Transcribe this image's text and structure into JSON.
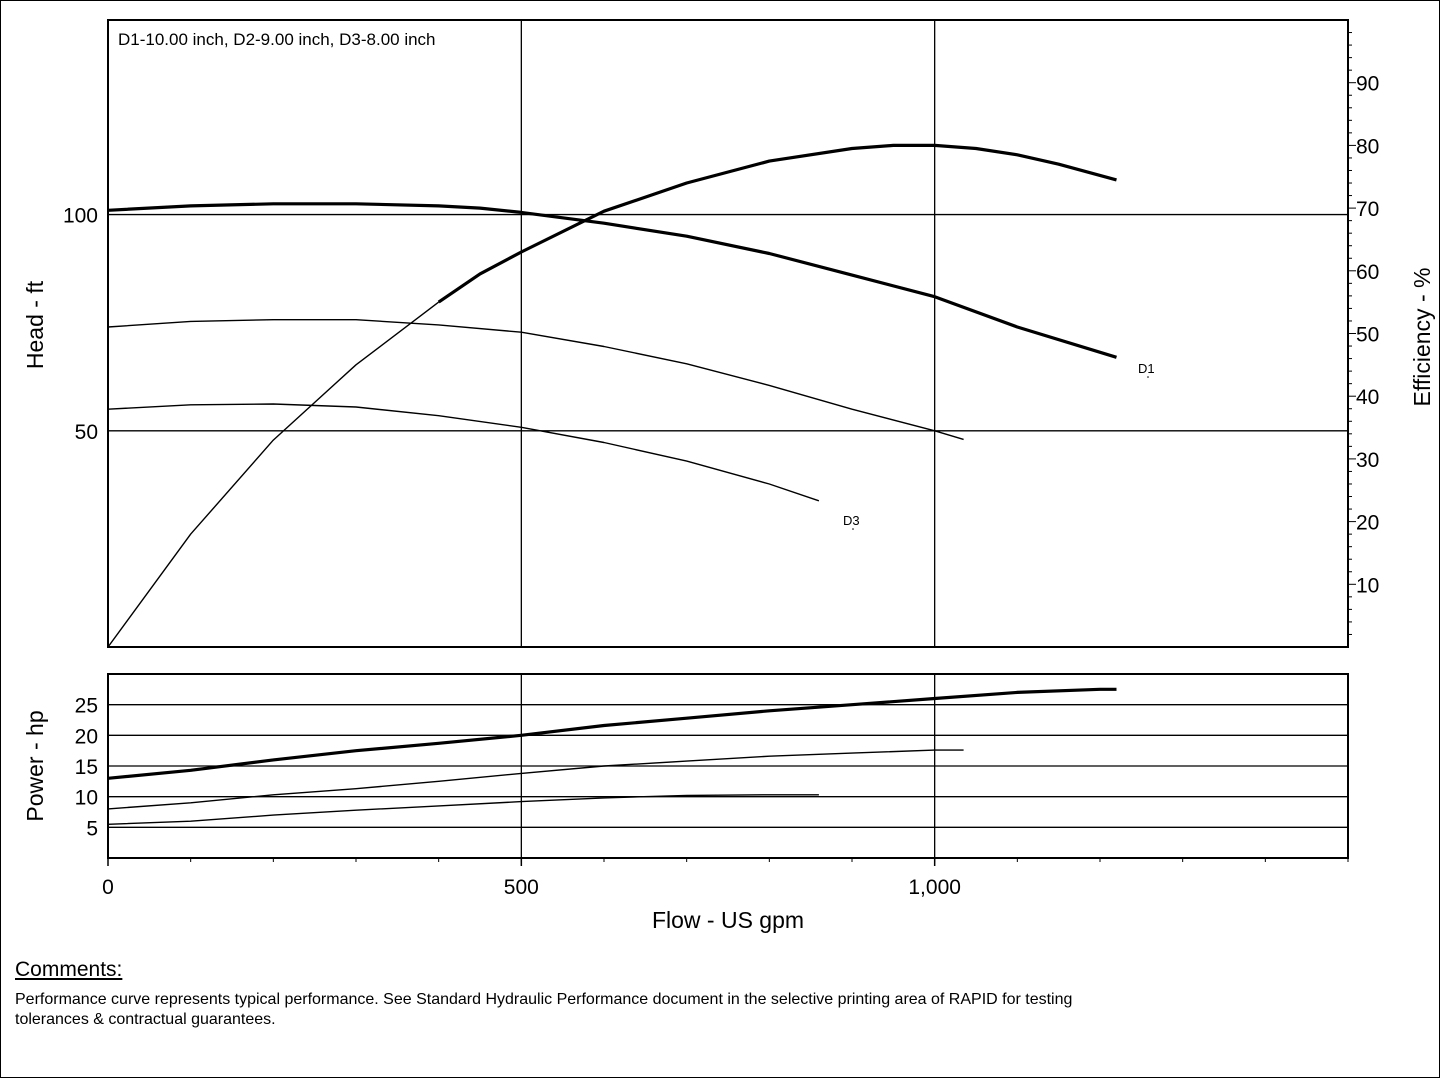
{
  "chart_data": [
    {
      "type": "line",
      "panel": "head-efficiency",
      "title": "D1-10.00 inch,  D2-9.00 inch,  D3-8.00 inch",
      "xlabel": "Flow - US gpm",
      "ylabel": "Head - ft",
      "y2label": "Efficiency - %",
      "xlim": [
        0,
        1500
      ],
      "ylim": [
        0,
        145
      ],
      "y2lim": [
        0,
        100
      ],
      "yticks": [
        50,
        100
      ],
      "y2ticks": [
        10,
        20,
        30,
        40,
        50,
        60,
        70,
        80,
        90
      ],
      "grid": true,
      "series": [
        {
          "name": "D1",
          "axis": "head",
          "weight": "bold",
          "x": [
            0,
            100,
            200,
            300,
            400,
            450,
            500,
            600,
            700,
            800,
            900,
            1000,
            1100,
            1220
          ],
          "y": [
            101,
            102,
            102.5,
            102.5,
            102,
            101.5,
            100.5,
            98,
            95,
            91,
            86,
            81,
            74,
            67
          ]
        },
        {
          "name": "",
          "axis": "head",
          "weight": "normal",
          "x": [
            0,
            100,
            200,
            300,
            400,
            500,
            600,
            700,
            800,
            900,
            1000,
            1035
          ],
          "y": [
            74,
            75.3,
            75.7,
            75.7,
            74.5,
            72.8,
            69.5,
            65.5,
            60.5,
            55,
            50,
            48
          ]
        },
        {
          "name": "D3",
          "axis": "head",
          "weight": "normal",
          "x": [
            0,
            100,
            200,
            300,
            400,
            500,
            600,
            700,
            800,
            860
          ],
          "y": [
            55,
            56,
            56.2,
            55.5,
            53.5,
            50.8,
            47.3,
            43,
            37.7,
            33.8
          ]
        },
        {
          "name": "",
          "axis": "efficiency",
          "weight": "normal",
          "x": [
            0,
            100,
            200,
            300,
            400
          ],
          "y": [
            0,
            18,
            33,
            45,
            55
          ]
        },
        {
          "name": "",
          "axis": "efficiency",
          "weight": "bold",
          "x": [
            400,
            450,
            500,
            600,
            700,
            800,
            900,
            950,
            1000,
            1050,
            1100,
            1150,
            1220
          ],
          "y": [
            55,
            59.5,
            63,
            69.5,
            74,
            77.5,
            79.5,
            80,
            80,
            79.5,
            78.5,
            77,
            74.5
          ]
        }
      ],
      "annotations": [
        "D1",
        "D3"
      ]
    },
    {
      "type": "line",
      "panel": "power",
      "xlabel": "Flow - US gpm",
      "ylabel": "Power - hp",
      "xlim": [
        0,
        1500
      ],
      "ylim": [
        0,
        30
      ],
      "xticks": [
        0,
        500,
        1000
      ],
      "xtick_labels": [
        "0",
        "500",
        "1,000"
      ],
      "yticks": [
        5,
        10,
        15,
        20,
        25
      ],
      "grid": true,
      "series": [
        {
          "name": "",
          "weight": "bold",
          "x": [
            0,
            100,
            200,
            300,
            400,
            500,
            600,
            700,
            800,
            900,
            1000,
            1100,
            1200,
            1220
          ],
          "y": [
            13,
            14.3,
            16,
            17.5,
            18.7,
            20,
            21.6,
            22.8,
            24,
            25,
            26,
            27,
            27.5,
            27.5
          ]
        },
        {
          "name": "",
          "weight": "normal",
          "x": [
            0,
            100,
            200,
            300,
            400,
            500,
            600,
            700,
            800,
            900,
            1000,
            1035
          ],
          "y": [
            8,
            9,
            10.3,
            11.3,
            12.5,
            13.8,
            15,
            15.8,
            16.6,
            17.1,
            17.6,
            17.6
          ]
        },
        {
          "name": "",
          "weight": "normal",
          "x": [
            0,
            100,
            200,
            300,
            400,
            500,
            600,
            700,
            800,
            860
          ],
          "y": [
            5.5,
            6,
            7,
            7.8,
            8.5,
            9.2,
            9.8,
            10.2,
            10.3,
            10.3
          ]
        }
      ]
    }
  ],
  "comments": {
    "title": "Comments:",
    "text": "Performance curve represents typical performance.  See Standard Hydraulic Performance document in the selective printing area of RAPID for testing tolerances & contractual guarantees."
  }
}
